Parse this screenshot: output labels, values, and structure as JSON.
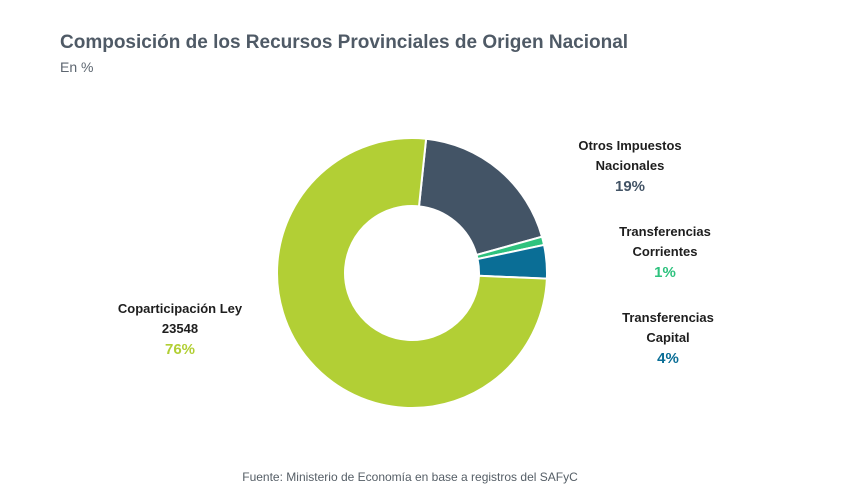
{
  "header": {
    "title": "Composición de los Recursos Provinciales de Origen Nacional",
    "subtitle": "En %"
  },
  "labels": [
    {
      "line1": "Otros Impuestos",
      "line2": "Nacionales",
      "pct": "19%"
    },
    {
      "line1": "Transferencias",
      "line2": "Corrientes",
      "pct": "1%"
    },
    {
      "line1": "Transferencias",
      "line2": "Capital",
      "pct": "4%"
    },
    {
      "line1": "Coparticipación Ley",
      "line2": "23548",
      "pct": "76%"
    }
  ],
  "source": "Fuente: Ministerio de Economía en base a registros del SAFyC",
  "chart_data": {
    "type": "pie",
    "donut": true,
    "title": "Composición de los Recursos Provinciales de Origen Nacional",
    "subtitle": "En %",
    "categories": [
      "Coparticipación Ley 23548",
      "Otros Impuestos Nacionales",
      "Transferencias Corrientes",
      "Transferencias Capital"
    ],
    "values": [
      76,
      19,
      1,
      4
    ],
    "colors": [
      "#b2cf35",
      "#435466",
      "#2ec27e",
      "#0a6e96"
    ]
  }
}
